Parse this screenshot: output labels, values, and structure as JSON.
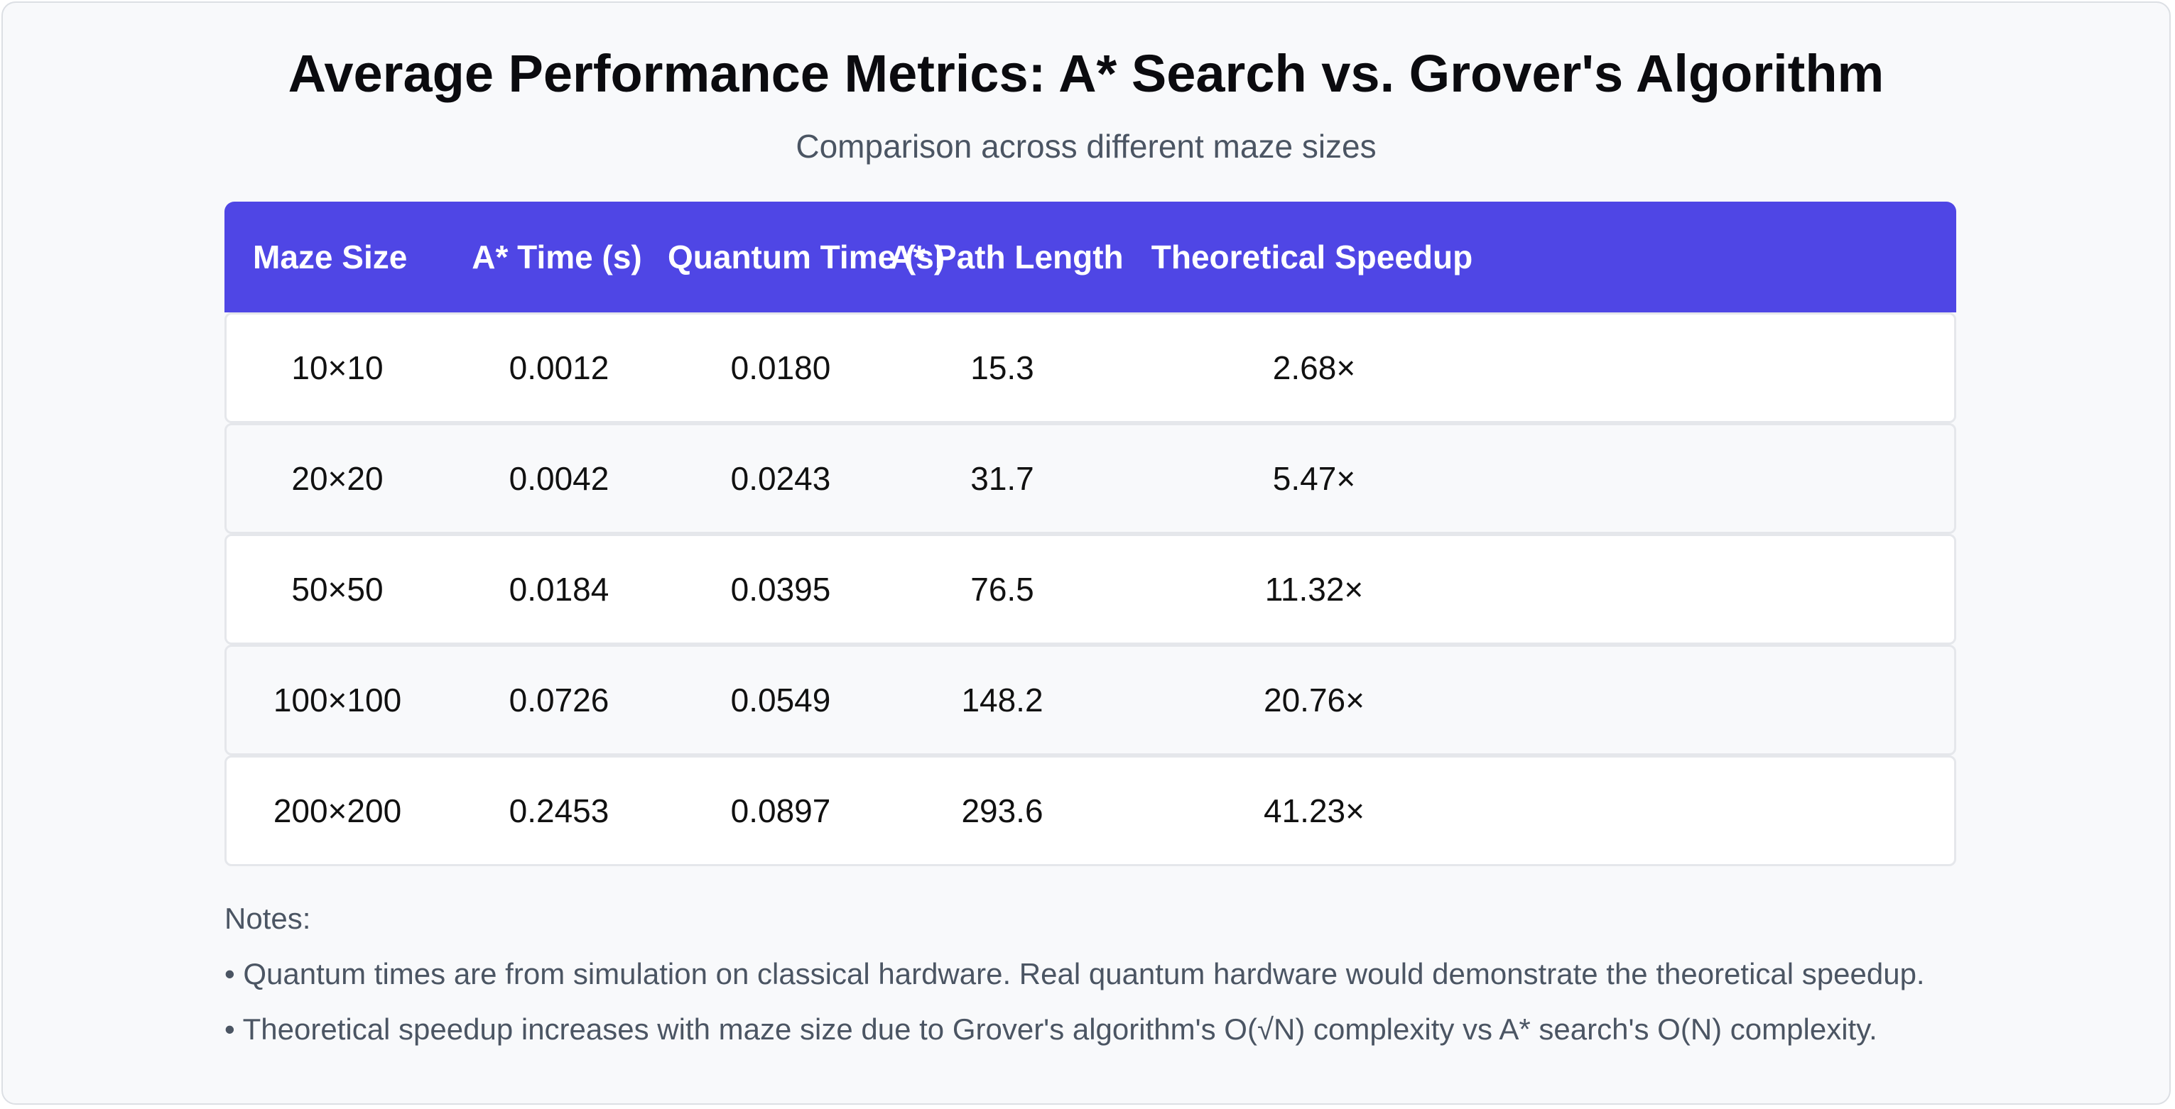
{
  "chart_data": {
    "type": "table",
    "title": "Average Performance Metrics: A* Search vs. Grover's Algorithm",
    "subtitle": "Comparison across different maze sizes",
    "columns": [
      "Maze Size",
      "A* Time (s)",
      "Quantum Time (s)",
      "A* Path Length",
      "Theoretical Speedup"
    ],
    "rows": [
      [
        "10×10",
        "0.0012",
        "0.0180",
        "15.3",
        "2.68×"
      ],
      [
        "20×20",
        "0.0042",
        "0.0243",
        "31.7",
        "5.47×"
      ],
      [
        "50×50",
        "0.0184",
        "0.0395",
        "76.5",
        "11.32×"
      ],
      [
        "100×100",
        "0.0726",
        "0.0549",
        "148.2",
        "20.76×"
      ],
      [
        "200×200",
        "0.2453",
        "0.0897",
        "293.6",
        "41.23×"
      ]
    ],
    "header_color": "#4f46e5"
  },
  "notes": {
    "heading": "Notes:",
    "items": [
      "• Quantum times are from simulation on classical hardware. Real quantum hardware would demonstrate the theoretical speedup.",
      "• Theoretical speedup increases with maze size due to Grover's algorithm's O(√N) complexity vs A* search's O(N) complexity."
    ]
  }
}
